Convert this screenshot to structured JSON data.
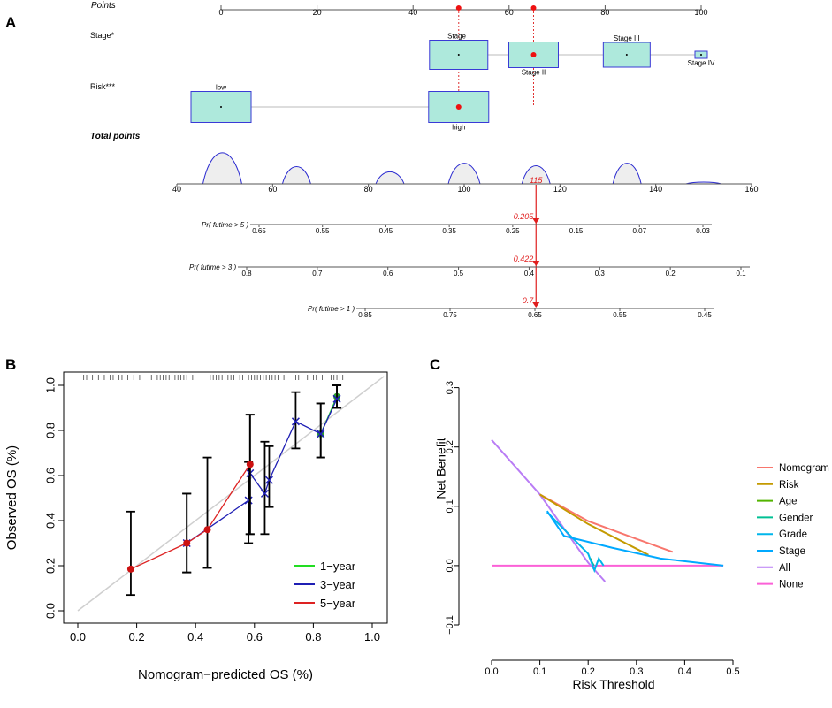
{
  "figure": {
    "panels": {
      "A": "A",
      "B": "B",
      "C": "C"
    }
  },
  "chart_data": [
    {
      "panel": "A",
      "type": "nomogram",
      "points_axis": {
        "label": "Points",
        "ticks": [
          0,
          20,
          40,
          60,
          80,
          100
        ],
        "selected_points": [
          49.5,
          65.1
        ]
      },
      "variables": [
        {
          "name": "Stage*",
          "levels": [
            {
              "label": "Stage I",
              "points": 49.5,
              "label_pos": "above",
              "selected": false
            },
            {
              "label": "Stage II",
              "points": 65.1,
              "label_pos": "below",
              "selected": true
            },
            {
              "label": "Stage III",
              "points": 84.5,
              "label_pos": "above",
              "selected": false
            },
            {
              "label": "Stage IV",
              "points": 100,
              "label_pos": "below",
              "selected": false
            }
          ]
        },
        {
          "name": "Risk***",
          "levels": [
            {
              "label": "low",
              "points": 0,
              "label_pos": "above",
              "selected": false
            },
            {
              "label": "high",
              "points": 49.5,
              "label_pos": "below",
              "selected": true
            }
          ]
        }
      ],
      "total_points": {
        "label": "Total points",
        "ticks": [
          40,
          60,
          80,
          100,
          120,
          140,
          160
        ],
        "selected": 115,
        "selected_label": "115",
        "density_peaks": [
          49.5,
          65,
          84.5,
          100,
          115,
          134,
          150
        ]
      },
      "probabilities": [
        {
          "label": "Pr( futime > 5 )",
          "ticks": [
            0.65,
            0.55,
            0.45,
            0.35,
            0.25,
            0.15,
            0.07,
            0.03
          ],
          "tick_labels": [
            "0.65",
            "0.55",
            "0.45",
            "0.35",
            "0.25",
            "0.15",
            "0.07",
            "0.03"
          ],
          "predicted": 0.205,
          "predicted_label": "0.205"
        },
        {
          "label": "Pr( futime > 3 )",
          "ticks": [
            0.8,
            0.7,
            0.6,
            0.5,
            0.4,
            0.3,
            0.2,
            0.1
          ],
          "tick_labels": [
            "0.8",
            "0.7",
            "0.6",
            "0.5",
            "0.4",
            "0.3",
            "0.2",
            "0.1"
          ],
          "predicted": 0.422,
          "predicted_label": "0.422"
        },
        {
          "label": "Pr( futime > 1 )",
          "ticks": [
            0.85,
            0.75,
            0.65,
            0.55,
            0.45
          ],
          "tick_labels": [
            "0.85",
            "0.75",
            "0.65",
            "0.55",
            "0.45"
          ],
          "predicted": 0.7,
          "predicted_label": "0.7"
        }
      ]
    },
    {
      "panel": "B",
      "type": "calibration",
      "xlabel": "Nomogram−predicted OS (%)",
      "ylabel": "Observed OS (%)",
      "xlim": [
        0,
        1
      ],
      "ylim": [
        0,
        1
      ],
      "ticks": [
        0.0,
        0.2,
        0.4,
        0.6,
        0.8,
        1.0
      ],
      "tick_labels": [
        "0.0",
        "0.2",
        "0.4",
        "0.6",
        "0.8",
        "1.0"
      ],
      "series": [
        {
          "name": "1−year",
          "color": "#22dd22",
          "points": [
            {
              "x": 0.825,
              "y": 0.785,
              "lo": 0.68,
              "hi": 0.92
            },
            {
              "x": 0.88,
              "y": 0.95,
              "lo": 0.9,
              "hi": 1.0
            }
          ]
        },
        {
          "name": "3−year",
          "color": "#1f1fb4",
          "points": [
            {
              "x": 0.37,
              "y": 0.3,
              "lo": 0.17,
              "hi": 0.52
            },
            {
              "x": 0.58,
              "y": 0.49,
              "lo": 0.3,
              "hi": 0.66
            },
            {
              "x": 0.585,
              "y": 0.61,
              "lo": 0.34,
              "hi": 0.87
            },
            {
              "x": 0.635,
              "y": 0.52,
              "lo": 0.34,
              "hi": 0.75
            },
            {
              "x": 0.65,
              "y": 0.58,
              "lo": 0.46,
              "hi": 0.73
            },
            {
              "x": 0.74,
              "y": 0.84,
              "lo": 0.72,
              "hi": 0.97
            },
            {
              "x": 0.825,
              "y": 0.785,
              "lo": 0.68,
              "hi": 0.92
            },
            {
              "x": 0.88,
              "y": 0.94,
              "lo": 0.9,
              "hi": 1.0
            }
          ]
        },
        {
          "name": "5−year",
          "color": "#dd2222",
          "points": [
            {
              "x": 0.18,
              "y": 0.185,
              "lo": 0.07,
              "hi": 0.44
            },
            {
              "x": 0.37,
              "y": 0.3,
              "lo": 0.17,
              "hi": 0.52
            },
            {
              "x": 0.44,
              "y": 0.36,
              "lo": 0.19,
              "hi": 0.68
            },
            {
              "x": 0.585,
              "y": 0.65,
              "lo": 0.34,
              "hi": 0.87
            }
          ]
        }
      ],
      "legend_position": "bottom-right",
      "rug_x": [
        0.02,
        0.03,
        0.05,
        0.07,
        0.09,
        0.11,
        0.12,
        0.14,
        0.15,
        0.17,
        0.19,
        0.21,
        0.25,
        0.27,
        0.28,
        0.29,
        0.3,
        0.31,
        0.33,
        0.34,
        0.35,
        0.36,
        0.37,
        0.39,
        0.45,
        0.46,
        0.47,
        0.48,
        0.49,
        0.5,
        0.51,
        0.52,
        0.53,
        0.55,
        0.56,
        0.58,
        0.59,
        0.6,
        0.61,
        0.62,
        0.63,
        0.64,
        0.65,
        0.66,
        0.67,
        0.68,
        0.7,
        0.74,
        0.75,
        0.78,
        0.8,
        0.81,
        0.83,
        0.86,
        0.87,
        0.88,
        0.89,
        0.9
      ]
    },
    {
      "panel": "C",
      "type": "line",
      "title": "",
      "xlabel": "Risk Threshold",
      "ylabel": "Net Benefit",
      "xlim": [
        -0.025,
        0.505
      ],
      "ylim": [
        -0.105,
        0.305
      ],
      "xticks": [
        0.0,
        0.1,
        0.2,
        0.3,
        0.4,
        0.5
      ],
      "xtick_labels": [
        "0.0",
        "0.1",
        "0.2",
        "0.3",
        "0.4",
        "0.5"
      ],
      "yticks": [
        -0.1,
        0.0,
        0.1,
        0.2,
        0.3
      ],
      "ytick_labels": [
        "−0.1",
        "0.0",
        "0.1",
        "0.2",
        "0.3"
      ],
      "legend_position": "right",
      "series": [
        {
          "name": "Nomogram",
          "color": "#f8766d",
          "x": [
            0.1,
            0.2,
            0.3,
            0.375
          ],
          "y": [
            0.12,
            0.075,
            0.045,
            0.023
          ]
        },
        {
          "name": "Risk",
          "color": "#c49a00",
          "x": [
            0.1,
            0.2,
            0.325
          ],
          "y": [
            0.12,
            0.07,
            0.018
          ]
        },
        {
          "name": "Age",
          "color": "#53b400",
          "x": [
            0.205,
            0.21
          ],
          "y": [
            0.012,
            0.0
          ]
        },
        {
          "name": "Gender",
          "color": "#00c094",
          "x": [
            0.206,
            0.212
          ],
          "y": [
            0.008,
            0.0
          ]
        },
        {
          "name": "Grade",
          "color": "#00b6eb",
          "x": [
            0.115,
            0.2,
            0.213,
            0.222,
            0.232
          ],
          "y": [
            0.09,
            0.02,
            -0.008,
            0.012,
            0.0
          ]
        },
        {
          "name": "Stage",
          "color": "#00a9ff",
          "x": [
            0.115,
            0.15,
            0.25,
            0.35,
            0.48
          ],
          "y": [
            0.092,
            0.05,
            0.03,
            0.012,
            0.0
          ]
        },
        {
          "name": "All",
          "color": "#b97cf5",
          "x": [
            0.0,
            0.1,
            0.2,
            0.235
          ],
          "y": [
            0.212,
            0.12,
            0.005,
            -0.027
          ]
        },
        {
          "name": "None",
          "color": "#fb61d7",
          "x": [
            0.0,
            0.48
          ],
          "y": [
            0.0,
            0.0
          ]
        }
      ]
    }
  ]
}
